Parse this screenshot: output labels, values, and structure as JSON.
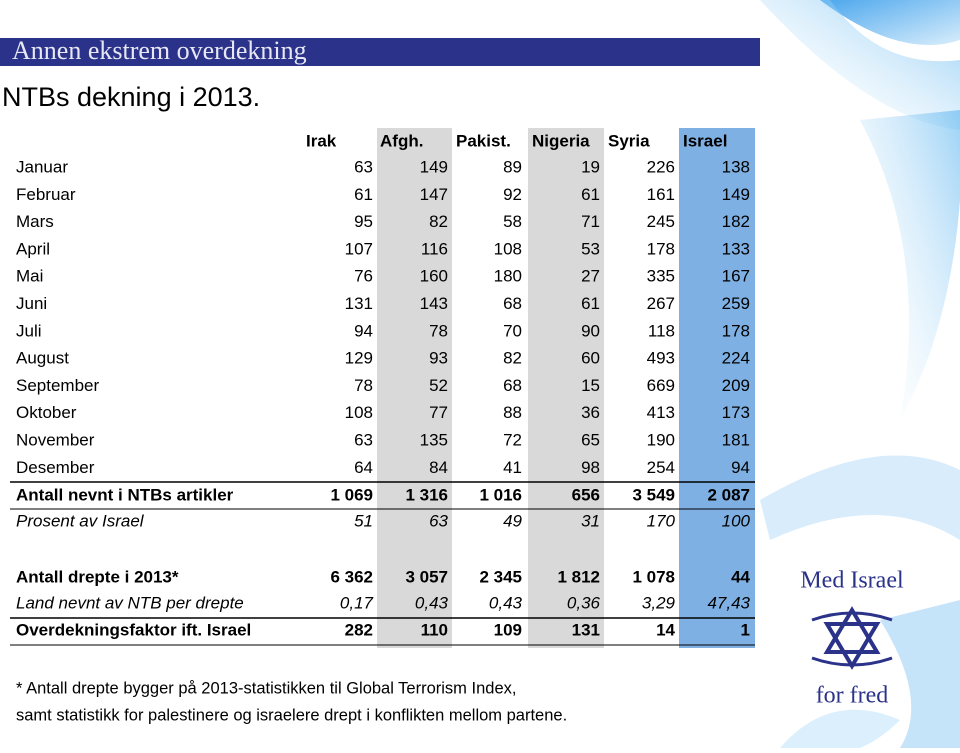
{
  "title": "Annen ekstrem overdekning",
  "subtitle": "NTBs dekning i 2013.",
  "table": {
    "columns": [
      "Irak",
      "Afgh.",
      "Pakist.",
      "Nigeria",
      "Syria",
      "Israel"
    ],
    "months": [
      {
        "label": "Januar",
        "values": [
          "63",
          "149",
          "89",
          "19",
          "226",
          "138"
        ]
      },
      {
        "label": "Februar",
        "values": [
          "61",
          "147",
          "92",
          "61",
          "161",
          "149"
        ]
      },
      {
        "label": "Mars",
        "values": [
          "95",
          "82",
          "58",
          "71",
          "245",
          "182"
        ]
      },
      {
        "label": "April",
        "values": [
          "107",
          "116",
          "108",
          "53",
          "178",
          "133"
        ]
      },
      {
        "label": "Mai",
        "values": [
          "76",
          "160",
          "180",
          "27",
          "335",
          "167"
        ]
      },
      {
        "label": "Juni",
        "values": [
          "131",
          "143",
          "68",
          "61",
          "267",
          "259"
        ]
      },
      {
        "label": "Juli",
        "values": [
          "94",
          "78",
          "70",
          "90",
          "118",
          "178"
        ]
      },
      {
        "label": "August",
        "values": [
          "129",
          "93",
          "82",
          "60",
          "493",
          "224"
        ]
      },
      {
        "label": "September",
        "values": [
          "78",
          "52",
          "68",
          "15",
          "669",
          "209"
        ]
      },
      {
        "label": "Oktober",
        "values": [
          "108",
          "77",
          "88",
          "36",
          "413",
          "173"
        ]
      },
      {
        "label": "November",
        "values": [
          "63",
          "135",
          "72",
          "65",
          "190",
          "181"
        ]
      },
      {
        "label": "Desember",
        "values": [
          "64",
          "84",
          "41",
          "98",
          "254",
          "94"
        ]
      }
    ],
    "total": {
      "label": "Antall nevnt i NTBs artikler",
      "values": [
        "1 069",
        "1 316",
        "1 016",
        "656",
        "3 549",
        "2 087"
      ]
    },
    "percent": {
      "label": "Prosent av Israel",
      "values": [
        "51",
        "63",
        "49",
        "31",
        "170",
        "100"
      ]
    },
    "killed": {
      "label": "Antall drepte i 2013*",
      "values": [
        "6 362",
        "3 057",
        "2 345",
        "1 812",
        "1 078",
        "44"
      ]
    },
    "per_killed": {
      "label": "Land nevnt av NTB per drepte",
      "values": [
        "0,17",
        "0,43",
        "0,43",
        "0,36",
        "3,29",
        "47,43"
      ]
    },
    "factor": {
      "label": "Overdekningsfaktor ift. Israel",
      "values": [
        "282",
        "110",
        "109",
        "131",
        "14",
        "1"
      ]
    }
  },
  "footnote": [
    "* Antall drepte bygger på 2013-statistikken til Global Terrorism Index,",
    "samt statistikk for palestinere og israelere drept i konflikten mellom partene."
  ],
  "logo": {
    "top": "Med Israel",
    "bottom": "for fred"
  }
}
